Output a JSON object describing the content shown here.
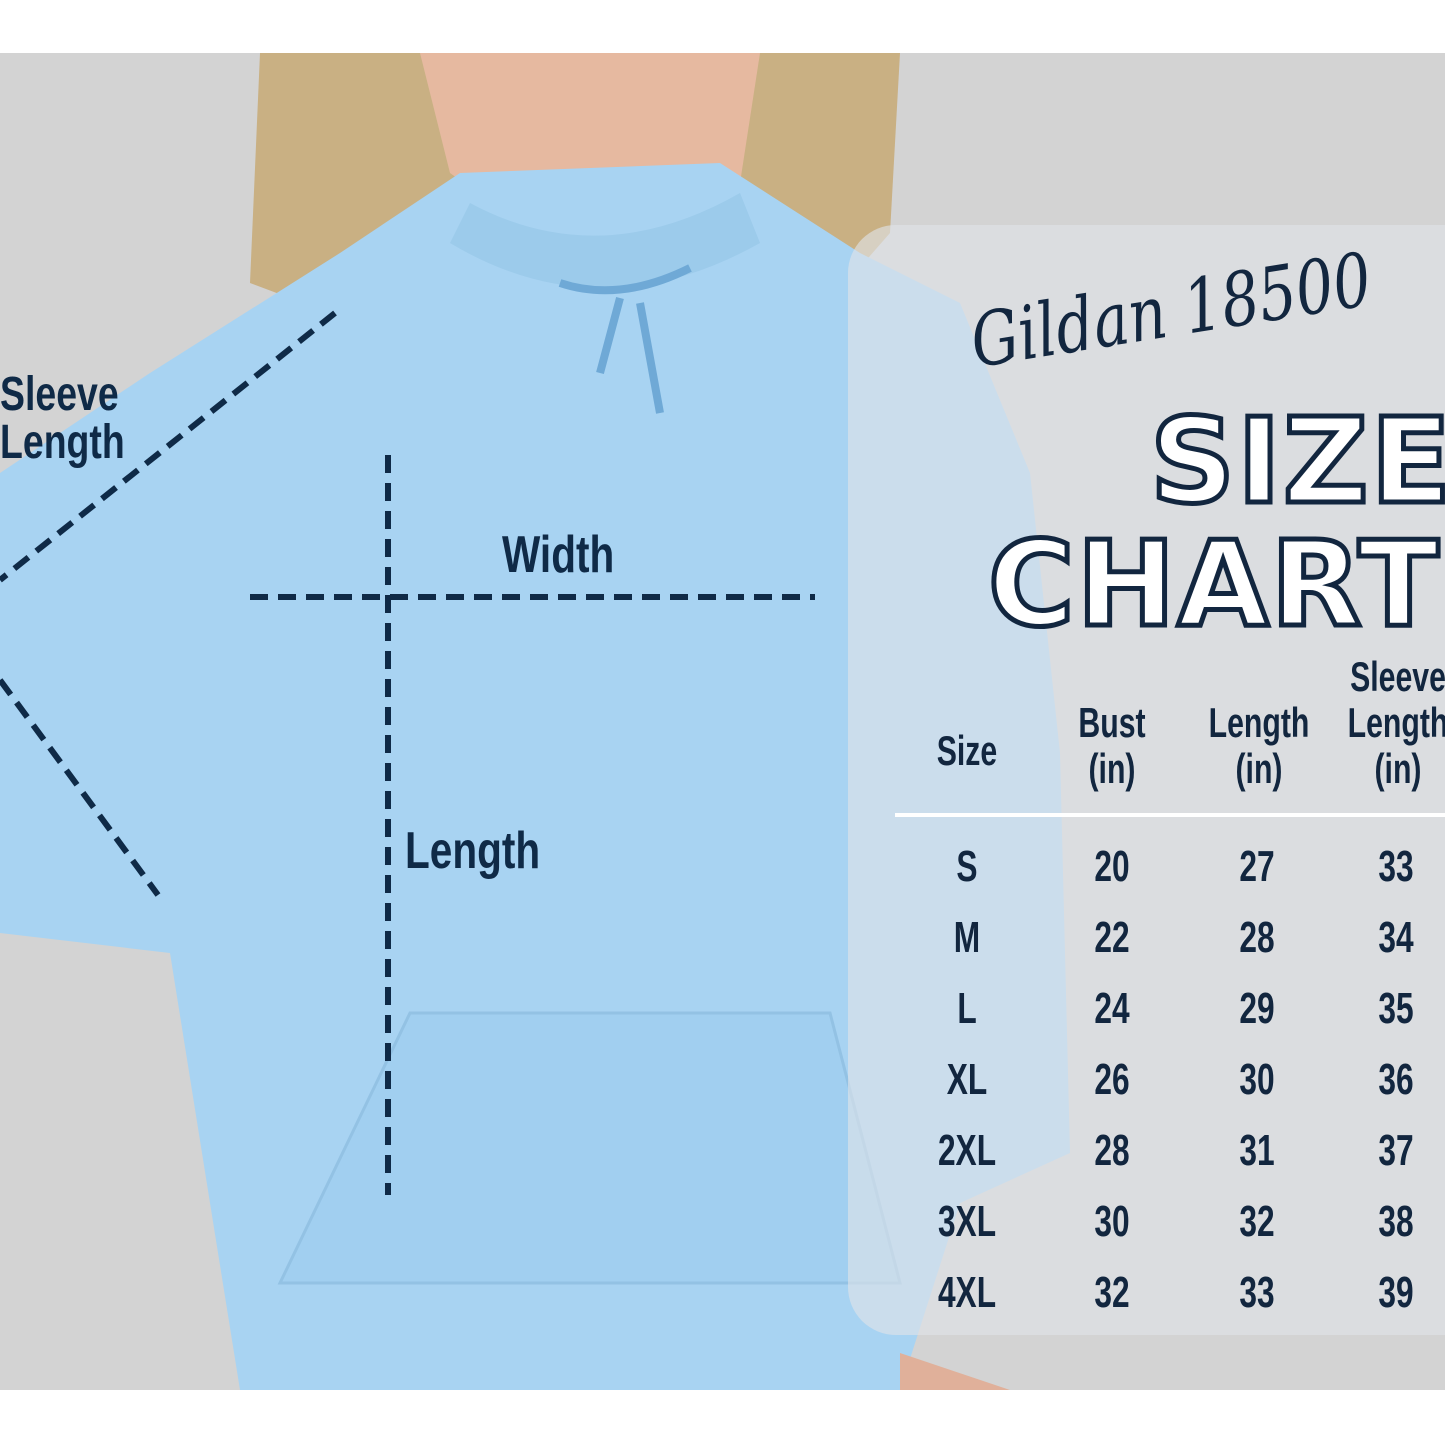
{
  "brand": "Gildan 18500",
  "title_line1": "SIZE",
  "title_line2": "CHART",
  "diagram_labels": {
    "sleeve_line1": "Sleeve",
    "sleeve_line2": "Length",
    "width": "Width",
    "length": "Length"
  },
  "colors": {
    "text": "#12263f",
    "hoodie": "#a8d3f2",
    "background": "#d3d3d3"
  },
  "table": {
    "headers": [
      {
        "line1": "Size",
        "line2": ""
      },
      {
        "line1": "Bust",
        "line2": "(in)"
      },
      {
        "line1": "Length",
        "line2": "(in)"
      },
      {
        "line1": "Sleeve",
        "line2": "Length",
        "line3": "(in)"
      }
    ],
    "rows": [
      [
        "S",
        "20",
        "27",
        "33"
      ],
      [
        "M",
        "22",
        "28",
        "34"
      ],
      [
        "L",
        "24",
        "29",
        "35"
      ],
      [
        "XL",
        "26",
        "30",
        "36"
      ],
      [
        "2XL",
        "28",
        "31",
        "37"
      ],
      [
        "3XL",
        "30",
        "32",
        "38"
      ],
      [
        "4XL",
        "32",
        "33",
        "39"
      ]
    ]
  }
}
